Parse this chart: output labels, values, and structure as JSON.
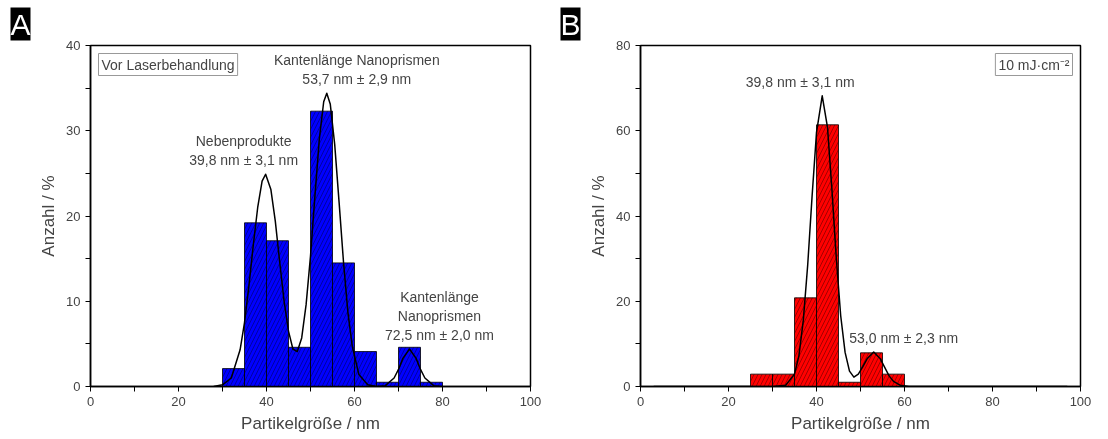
{
  "chart_data": [
    {
      "type": "histogram",
      "title": "A",
      "xlabel": "Partikelgröße / nm",
      "ylabel": "Anzahl / %",
      "bins": [
        30,
        35,
        40,
        45,
        50,
        55,
        60,
        65,
        70,
        75,
        80
      ],
      "values": [
        2.1,
        19.2,
        17.1,
        4.6,
        32.3,
        14.5,
        4.1,
        0.5,
        4.6,
        0.5
      ],
      "color": "#0000ff",
      "xlim": [
        0,
        100
      ],
      "xticks": [
        0,
        {
          "value": 10,
          "label": null
        },
        20,
        {
          "value": 30,
          "label": null
        },
        40,
        {
          "value": 50,
          "label": null
        },
        60,
        {
          "value": 70,
          "label": null
        },
        80,
        {
          "value": 90,
          "label": null
        },
        100
      ],
      "ylim": [
        0,
        40
      ],
      "yticks": [
        0,
        {
          "value": 5,
          "label": null
        },
        10,
        {
          "value": 15,
          "label": null
        },
        20,
        {
          "value": 25,
          "label": null
        },
        30,
        {
          "value": 35,
          "label": null
        },
        40
      ],
      "grid": false,
      "series": [
        {
          "type": "line",
          "color": "#000000",
          "x": [
            28,
            30,
            32,
            34,
            35,
            36,
            37,
            38,
            39,
            39.8,
            41,
            42,
            43,
            44,
            45,
            46,
            47,
            48,
            49,
            50,
            51,
            52,
            53,
            53.7,
            54.5,
            55.5,
            56.5,
            57.5,
            58.5,
            59.5,
            61,
            63,
            65,
            67,
            69,
            70,
            71,
            72.5,
            74,
            75,
            76,
            78,
            80
          ],
          "values": [
            0.0,
            0.2,
            1.0,
            4.3,
            7.5,
            11.8,
            16.6,
            21.0,
            24.1,
            24.9,
            23.1,
            19.4,
            14.6,
            10.0,
            6.5,
            4.4,
            4.1,
            5.7,
            9.6,
            15.3,
            22.3,
            29.0,
            33.4,
            34.4,
            33.1,
            28.4,
            21.6,
            14.6,
            8.7,
            4.7,
            1.4,
            0.2,
            0.0,
            0.1,
            1.0,
            2.0,
            3.3,
            4.4,
            3.3,
            2.0,
            1.0,
            0.1,
            0.0
          ]
        }
      ],
      "annotations": [
        "Vor Laserbehandlung",
        {
          "text": "Nebenprodukte\n39,8 nm ± 3,1 nm",
          "x": 39.8,
          "y": 24.9
        },
        {
          "text": "Kantenlänge Nanoprismen\n53,7 nm ± 2,9 nm",
          "x": 53.7,
          "y": 34.4
        },
        {
          "text": "Kantenlänge\nNanoprismen\n72,5 nm ± 2,0 nm",
          "x": 72.5,
          "y": 4.4
        }
      ]
    },
    {
      "type": "histogram",
      "title": "B",
      "xlabel": "Partikelgröße / nm",
      "ylabel": "Anzahl / %",
      "bins": [
        25,
        30,
        35,
        40,
        45,
        50,
        55,
        60
      ],
      "values": [
        2.9,
        2.9,
        20.8,
        61.4,
        1.0,
        7.9,
        2.9
      ],
      "color": "#ff0000",
      "xlim": [
        0,
        100
      ],
      "xticks": [
        0,
        {
          "value": 10,
          "label": null
        },
        20,
        {
          "value": 30,
          "label": null
        },
        40,
        {
          "value": 50,
          "label": null
        },
        60,
        {
          "value": 70,
          "label": null
        },
        80,
        {
          "value": 90,
          "label": null
        },
        100
      ],
      "ylim": [
        0,
        80
      ],
      "yticks": [
        0,
        {
          "value": 10,
          "label": null
        },
        20,
        {
          "value": 30,
          "label": null
        },
        40,
        {
          "value": 50,
          "label": null
        },
        60,
        {
          "value": 70,
          "label": null
        },
        80
      ],
      "grid": false,
      "series": [
        {
          "type": "line",
          "color": "#000000",
          "x": [
            3,
            30,
            33,
            35,
            36,
            37,
            38,
            39,
            40,
            41.3,
            42.5,
            43.5,
            44.5,
            45.5,
            46.5,
            47.5,
            48.5,
            49.5,
            50.5,
            51.5,
            53,
            54.5,
            55.5,
            56.5,
            57.5,
            59,
            61,
            97
          ],
          "values": [
            0.0,
            0.0,
            0.3,
            2.9,
            7.2,
            15.5,
            28.5,
            44.7,
            59.6,
            68.2,
            60.8,
            46.3,
            30.1,
            16.6,
            8.0,
            3.6,
            2.2,
            2.9,
            4.6,
            6.5,
            8.1,
            6.5,
            4.5,
            2.5,
            1.2,
            0.3,
            0.0,
            0.0
          ]
        }
      ],
      "annotations": [
        "10 mJ·cm⁻²",
        {
          "text": "39,8 nm ± 3,1 nm",
          "x": 41.3,
          "y": 68.2
        },
        {
          "text": "53,0 nm ± 2,3 nm",
          "x": 53,
          "y": 8.1
        }
      ]
    }
  ]
}
